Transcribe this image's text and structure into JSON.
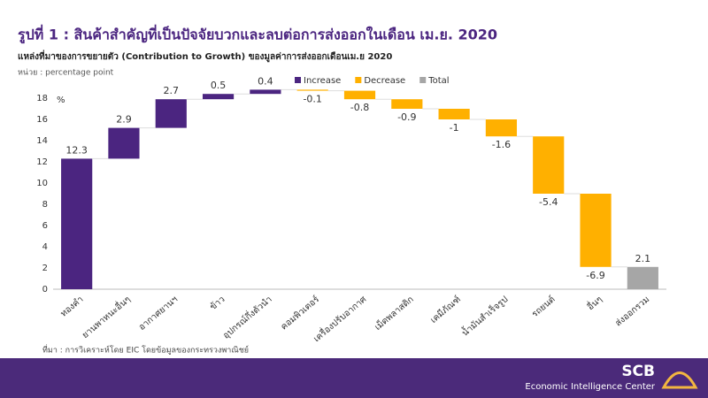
{
  "chart_data": {
    "type": "waterfall",
    "title": "รูปที่ 1 : สินค้าสำคัญที่เป็นปัจจัยบวกและลบต่อการส่งออกในเดือน เม.ย. 2020",
    "subtitle": "แหล่งที่มาของการขยายตัว (Contribution to Growth) ของมูลค่าการส่งออกเดือนเม.ย 2020",
    "unit_note": "หน่วย : percentage  point",
    "y_label": "%",
    "source": "ที่มา : การวิเคราะห์โดย EIC โดยข้อมูลของกระทรวงพาณิชย์",
    "brand": "SCB",
    "brand_sub": "Economic Intelligence Center",
    "categories": [
      "ทองคำ",
      "ยานพาหนะอื่นๆ",
      "อากาศยานฯ",
      "ข้าว",
      "อุปกรณ์กึ่งตัวนำ",
      "คอมพิวเตอร์",
      "เครื่องปรับอากาศ",
      "เม็ดพลาสติก",
      "เคมีภัณฑ์",
      "น้ำมันสำเร็จรูป",
      "รถยนต์",
      "อื่นๆ",
      "ส่งออกรวม"
    ],
    "series": [
      {
        "name": "Increase",
        "color": "#4b2580",
        "values": [
          12.3,
          2.9,
          2.7,
          0.5,
          0.4,
          null,
          null,
          null,
          null,
          null,
          null,
          null,
          null
        ]
      },
      {
        "name": "Decrease",
        "color": "#ffb000",
        "values": [
          null,
          null,
          null,
          null,
          null,
          -0.1,
          -0.8,
          -0.9,
          -1.0,
          -1.6,
          -5.4,
          -6.9,
          null
        ]
      },
      {
        "name": "Total",
        "color": "#a6a6a6",
        "values": [
          null,
          null,
          null,
          null,
          null,
          null,
          null,
          null,
          null,
          null,
          null,
          null,
          2.1
        ]
      }
    ],
    "ylim": [
      0,
      20
    ],
    "yticks": [
      0,
      2,
      4,
      6,
      8,
      10,
      12,
      14,
      16,
      18
    ],
    "legend": "top"
  }
}
